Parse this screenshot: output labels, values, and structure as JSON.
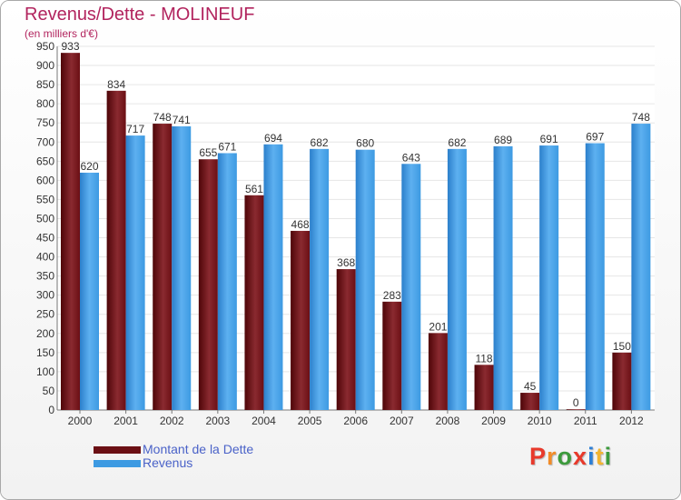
{
  "chart_data": {
    "type": "bar",
    "title": "Revenus/Dette - MOLINEUF",
    "subtitle": "(en milliers d'€)",
    "categories": [
      "2000",
      "2001",
      "2002",
      "2003",
      "2004",
      "2005",
      "2006",
      "2007",
      "2008",
      "2009",
      "2010",
      "2011",
      "2012"
    ],
    "series": [
      {
        "name": "Montant de la Dette",
        "color": "#6b0f14",
        "values": [
          933,
          834,
          748,
          655,
          561,
          468,
          368,
          283,
          201,
          118,
          45,
          0,
          150
        ]
      },
      {
        "name": "Revenus",
        "color": "#3d9ae2",
        "values": [
          620,
          717,
          741,
          671,
          694,
          682,
          680,
          643,
          682,
          689,
          691,
          697,
          748
        ]
      }
    ],
    "yticks": [
      0,
      50,
      100,
      150,
      200,
      250,
      300,
      350,
      400,
      450,
      500,
      550,
      600,
      650,
      700,
      750,
      800,
      850,
      900,
      950
    ],
    "ylim": [
      0,
      950
    ],
    "grid": true,
    "legend": "bottom-left"
  },
  "logo": {
    "letters": [
      "P",
      "r",
      "o",
      "x",
      "i",
      "t",
      "i"
    ],
    "colors": [
      "#e8392b",
      "#f28c28",
      "#3c9a3c",
      "#e8392b",
      "#2c7fd6",
      "#f2b430",
      "#3c9a3c"
    ]
  }
}
